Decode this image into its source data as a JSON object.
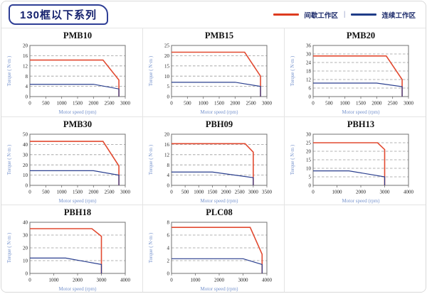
{
  "header": {
    "title": "130框以下系列",
    "legend": [
      {
        "label": "间歇工作区",
        "color": "#dd3b1f"
      },
      {
        "label": "连续工作区",
        "color": "#1f3c88"
      }
    ],
    "legend_separator": "|"
  },
  "chart_data": [
    {
      "type": "line",
      "title": "PMB10",
      "xlabel": "Motor speed (rpm)",
      "ylabel": "Torque ( N·m )",
      "xlim": [
        0,
        3000
      ],
      "ylim": [
        0,
        20
      ],
      "xticks": [
        0,
        500,
        1000,
        1500,
        2000,
        2500,
        3000
      ],
      "yticks": [
        0,
        4,
        8,
        12,
        16,
        20
      ],
      "grid": "dashed-horizontal",
      "legend_position": "none",
      "series": [
        {
          "name": "间歇工作区",
          "color": "#e24a31",
          "points": [
            [
              0,
              14.3
            ],
            [
              2300,
              14.3
            ],
            [
              2800,
              6.5
            ],
            [
              2800,
              0
            ]
          ]
        },
        {
          "name": "连续工作区",
          "color": "#2a3f8f",
          "points": [
            [
              0,
              4.8
            ],
            [
              2000,
              4.8
            ],
            [
              2800,
              3
            ],
            [
              2800,
              0
            ]
          ]
        }
      ]
    },
    {
      "type": "line",
      "title": "PMB15",
      "xlabel": "Motor speed (rpm)",
      "ylabel": "Torque ( N·m )",
      "xlim": [
        0,
        3000
      ],
      "ylim": [
        0,
        25
      ],
      "xticks": [
        0,
        500,
        1000,
        1500,
        2000,
        2500,
        3000
      ],
      "yticks": [
        0,
        5,
        10,
        15,
        20,
        25
      ],
      "grid": "dashed-horizontal",
      "legend_position": "none",
      "series": [
        {
          "name": "间歇工作区",
          "color": "#e24a31",
          "points": [
            [
              0,
              21.7
            ],
            [
              2300,
              21.7
            ],
            [
              2800,
              10
            ],
            [
              2800,
              0
            ]
          ]
        },
        {
          "name": "连续工作区",
          "color": "#2a3f8f",
          "points": [
            [
              0,
              7
            ],
            [
              2000,
              7
            ],
            [
              2800,
              5
            ],
            [
              2800,
              0
            ]
          ]
        }
      ]
    },
    {
      "type": "line",
      "title": "PMB20",
      "xlabel": "Motor speed (rpm)",
      "ylabel": "Torque ( N·m )",
      "xlim": [
        0,
        3000
      ],
      "ylim": [
        0,
        36
      ],
      "xticks": [
        0,
        500,
        1000,
        1500,
        2000,
        2500,
        3000
      ],
      "yticks": [
        0,
        6,
        12,
        18,
        24,
        30,
        36
      ],
      "grid": "dashed-horizontal",
      "legend_position": "none",
      "series": [
        {
          "name": "间歇工作区",
          "color": "#e24a31",
          "points": [
            [
              0,
              28.6
            ],
            [
              2300,
              28.6
            ],
            [
              2800,
              12
            ],
            [
              2800,
              0
            ]
          ]
        },
        {
          "name": "连续工作区",
          "color": "#2a3f8f",
          "points": [
            [
              0,
              9.5
            ],
            [
              2000,
              9.5
            ],
            [
              2800,
              7
            ],
            [
              2800,
              0
            ]
          ]
        }
      ]
    },
    {
      "type": "line",
      "title": "PMB30",
      "xlabel": "Motor speed (rpm)",
      "ylabel": "Torque ( N·m )",
      "xlim": [
        0,
        3000
      ],
      "ylim": [
        0,
        50
      ],
      "xticks": [
        0,
        500,
        1000,
        1500,
        2000,
        2500,
        3000
      ],
      "yticks": [
        0,
        10,
        20,
        30,
        40,
        50
      ],
      "grid": "dashed-horizontal",
      "legend_position": "none",
      "series": [
        {
          "name": "间歇工作区",
          "color": "#e24a31",
          "points": [
            [
              0,
              43
            ],
            [
              2300,
              43
            ],
            [
              2800,
              19
            ],
            [
              2800,
              0
            ]
          ]
        },
        {
          "name": "连续工作区",
          "color": "#2a3f8f",
          "points": [
            [
              0,
              14.3
            ],
            [
              2000,
              14.3
            ],
            [
              2800,
              10
            ],
            [
              2800,
              0
            ]
          ]
        }
      ]
    },
    {
      "type": "line",
      "title": "PBH09",
      "xlabel": "Motor speed (rpm)",
      "ylabel": "Torque ( N·m )",
      "xlim": [
        0,
        3500
      ],
      "ylim": [
        0,
        20
      ],
      "xticks": [
        0,
        500,
        1000,
        1500,
        2000,
        2500,
        3000,
        3500
      ],
      "yticks": [
        0,
        4,
        8,
        12,
        16,
        20
      ],
      "grid": "dashed-horizontal",
      "legend_position": "none",
      "series": [
        {
          "name": "间歇工作区",
          "color": "#e24a31",
          "points": [
            [
              0,
              16.3
            ],
            [
              2700,
              16.3
            ],
            [
              3000,
              13
            ],
            [
              3000,
              0
            ]
          ]
        },
        {
          "name": "连续工作区",
          "color": "#2a3f8f",
          "points": [
            [
              0,
              5.2
            ],
            [
              1500,
              5.2
            ],
            [
              3000,
              3
            ],
            [
              3000,
              0
            ]
          ]
        }
      ]
    },
    {
      "type": "line",
      "title": "PBH13",
      "xlabel": "Motor speed (rpm)",
      "ylabel": "Torque ( N·m )",
      "xlim": [
        0,
        4000
      ],
      "ylim": [
        0,
        30
      ],
      "xticks": [
        0,
        1000,
        2000,
        3000,
        4000
      ],
      "yticks": [
        0,
        5,
        10,
        15,
        20,
        25,
        30
      ],
      "grid": "dashed-horizontal",
      "legend_position": "none",
      "series": [
        {
          "name": "间歇工作区",
          "color": "#e24a31",
          "points": [
            [
              0,
              25
            ],
            [
              2700,
              25
            ],
            [
              3000,
              21
            ],
            [
              3000,
              0
            ]
          ]
        },
        {
          "name": "连续工作区",
          "color": "#2a3f8f",
          "points": [
            [
              0,
              8.5
            ],
            [
              1500,
              8.5
            ],
            [
              3000,
              5
            ],
            [
              3000,
              0
            ]
          ]
        }
      ]
    },
    {
      "type": "line",
      "title": "PBH18",
      "xlabel": "Motor speed (rpm)",
      "ylabel": "Torque ( N·m )",
      "xlim": [
        0,
        4000
      ],
      "ylim": [
        0,
        40
      ],
      "xticks": [
        0,
        1000,
        2000,
        3000,
        4000
      ],
      "yticks": [
        0,
        10,
        20,
        30,
        40
      ],
      "grid": "dashed-horizontal",
      "legend_position": "none",
      "series": [
        {
          "name": "间歇工作区",
          "color": "#e24a31",
          "points": [
            [
              0,
              35
            ],
            [
              2600,
              35
            ],
            [
              3000,
              29
            ],
            [
              3000,
              0
            ]
          ]
        },
        {
          "name": "连续工作区",
          "color": "#2a3f8f",
          "points": [
            [
              0,
              12
            ],
            [
              1500,
              12
            ],
            [
              3000,
              7
            ],
            [
              3000,
              0
            ]
          ]
        }
      ]
    },
    {
      "type": "line",
      "title": "PLC08",
      "xlabel": "Motor speed (rpm)",
      "ylabel": "Torque ( N·m )",
      "xlim": [
        0,
        4000
      ],
      "ylim": [
        0,
        8
      ],
      "xticks": [
        0,
        1000,
        2000,
        3000,
        4000
      ],
      "yticks": [
        0,
        2,
        4,
        6,
        8
      ],
      "grid": "dashed-horizontal",
      "legend_position": "none",
      "series": [
        {
          "name": "间歇工作区",
          "color": "#e24a31",
          "points": [
            [
              0,
              7.2
            ],
            [
              3300,
              7.2
            ],
            [
              3800,
              3
            ],
            [
              3800,
              0
            ]
          ]
        },
        {
          "name": "连续工作区",
          "color": "#2a3f8f",
          "points": [
            [
              0,
              2.3
            ],
            [
              3000,
              2.3
            ],
            [
              3800,
              1.4
            ],
            [
              3800,
              0
            ]
          ]
        }
      ]
    }
  ]
}
